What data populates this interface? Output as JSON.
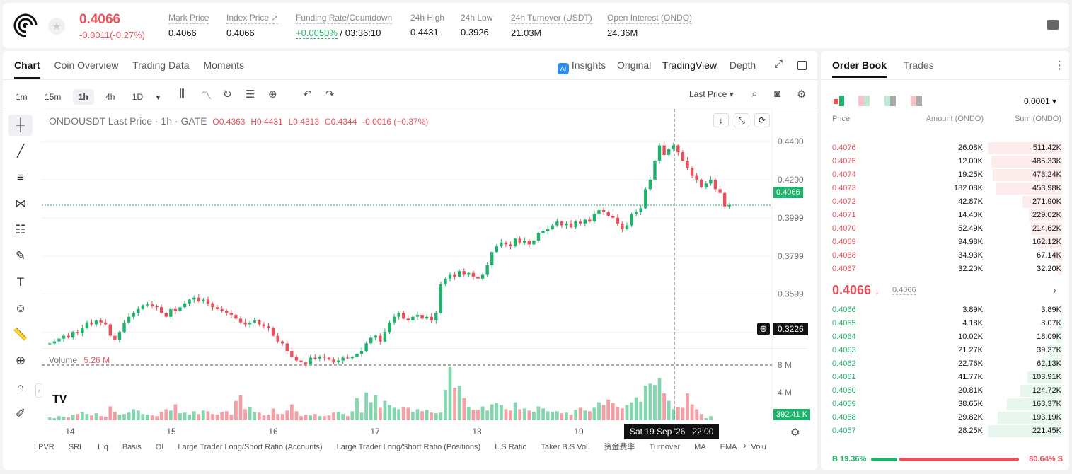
{
  "header": {
    "price": "0.4066",
    "change": "-0.0011(-0.27%)",
    "stats": [
      {
        "label": "Mark Price",
        "value": "0.4066"
      },
      {
        "label": "Index Price ↗",
        "value": "0.4066"
      },
      {
        "label": "Funding Rate/Countdown",
        "value_green": "+0.0050%",
        "value": "/ 03:36:10"
      },
      {
        "label": "24h High",
        "value": "0.4431"
      },
      {
        "label": "24h Low",
        "value": "0.3926"
      },
      {
        "label": "24h Turnover (USDT)",
        "value": "21.03M"
      },
      {
        "label": "Open Interest (ONDO)",
        "value": "24.36M"
      }
    ]
  },
  "chart_panel": {
    "tabs": [
      "Chart",
      "Coin Overview",
      "Trading Data",
      "Moments"
    ],
    "right_tabs": [
      "Insights",
      "Original",
      "TradingView",
      "Depth"
    ],
    "timeframes": [
      "1m",
      "15m",
      "1h",
      "4h",
      "1D"
    ],
    "price_type": "Last Price",
    "legend": {
      "symbol": "ONDOUSDT Last Price · 1h · GATE",
      "o": "O0.4363",
      "h": "H0.4431",
      "l": "L0.4313",
      "c": "C0.4344",
      "chg": "-0.0016 (−0.37%)"
    },
    "volume_label": "Volume",
    "volume_value": "5.26 M",
    "last_price_tag": "0.4066",
    "crosshair_tag": "0.3226",
    "volume_tag": "392.41 K",
    "crosshair_time": "Sat 19 Sep '26   22:00",
    "bottom_indicators": [
      "LPVR",
      "SRL",
      "Liq",
      "Basis",
      "OI",
      "Large Trader Long/Short Ratio (Accounts)",
      "Large Trader Long/Short Ratio (Positions)",
      "L.S Ratio",
      "Taker B.S Vol.",
      "资金费率",
      "Turnover",
      "MA",
      "EMA",
      "Volu"
    ]
  },
  "chart_data": {
    "type": "candlestick",
    "price_axis": [
      "0.4400",
      "0.4200",
      "0.3999",
      "0.3799",
      "0.3599",
      "0.3399"
    ],
    "volume_axis": [
      "8 M",
      "4 M"
    ],
    "x_ticks": [
      "14",
      "15",
      "16",
      "17",
      "18",
      "19"
    ],
    "ylim": [
      0.3226,
      0.446
    ],
    "close": [
      0.334,
      0.335,
      0.3365,
      0.338,
      0.337,
      0.34,
      0.3395,
      0.342,
      0.345,
      0.344,
      0.346,
      0.345,
      0.344,
      0.338,
      0.336,
      0.34,
      0.345,
      0.348,
      0.35,
      0.352,
      0.354,
      0.3545,
      0.3535,
      0.353,
      0.35,
      0.348,
      0.352,
      0.351,
      0.353,
      0.355,
      0.357,
      0.358,
      0.356,
      0.357,
      0.355,
      0.353,
      0.352,
      0.351,
      0.35,
      0.349,
      0.347,
      0.345,
      0.344,
      0.345,
      0.346,
      0.344,
      0.343,
      0.342,
      0.338,
      0.335,
      0.334,
      0.33,
      0.327,
      0.325,
      0.324,
      0.323,
      0.3265,
      0.326,
      0.327,
      0.3265,
      0.3255,
      0.324,
      0.325,
      0.3265,
      0.3262,
      0.327,
      0.3285,
      0.33,
      0.334,
      0.337,
      0.338,
      0.335,
      0.34,
      0.345,
      0.348,
      0.35,
      0.347,
      0.346,
      0.348,
      0.349,
      0.347,
      0.348,
      0.346,
      0.35,
      0.365,
      0.368,
      0.37,
      0.369,
      0.372,
      0.37,
      0.371,
      0.369,
      0.368,
      0.37,
      0.375,
      0.382,
      0.385,
      0.387,
      0.386,
      0.385,
      0.389,
      0.387,
      0.388,
      0.386,
      0.388,
      0.392,
      0.393,
      0.394,
      0.396,
      0.398,
      0.396,
      0.397,
      0.395,
      0.398,
      0.397,
      0.399,
      0.398,
      0.402,
      0.404,
      0.403,
      0.401,
      0.4,
      0.397,
      0.394,
      0.396,
      0.402,
      0.403,
      0.405,
      0.415,
      0.42,
      0.43,
      0.438,
      0.433,
      0.436,
      0.438,
      0.4344,
      0.43,
      0.426,
      0.422,
      0.42,
      0.416,
      0.418,
      0.42,
      0.415,
      0.413,
      0.406,
      0.4066
    ],
    "volume_m": [
      0.4,
      0.3,
      0.6,
      0.5,
      0.4,
      0.8,
      0.9,
      1.2,
      0.9,
      0.7,
      1.0,
      0.6,
      0.5,
      2.0,
      1.2,
      0.8,
      0.9,
      1.1,
      1.6,
      1.4,
      0.9,
      0.8,
      0.7,
      0.6,
      1.2,
      1.6,
      1.4,
      2.3,
      1.0,
      1.1,
      0.8,
      1.3,
      0.9,
      1.4,
      1.3,
      0.9,
      0.8,
      1.2,
      1.3,
      0.8,
      2.8,
      3.6,
      1.6,
      1.9,
      1.2,
      1.1,
      0.7,
      0.8,
      1.7,
      0.9,
      0.9,
      1.4,
      2.3,
      1.3,
      0.6,
      0.8,
      0.7,
      0.9,
      0.6,
      0.6,
      0.7,
      1.1,
      1.2,
      0.9,
      0.6,
      1.3,
      3.2,
      1.1,
      4.0,
      2.6,
      3.6,
      1.8,
      2.8,
      2.2,
      1.8,
      1.6,
      1.9,
      1.8,
      1.2,
      1.6,
      1.3,
      1.5,
      1.1,
      1.0,
      1.1,
      4.4,
      7.7,
      4.7,
      5.0,
      3.2,
      1.9,
      1.5,
      1.5,
      2.0,
      1.4,
      2.3,
      2.5,
      2.2,
      1.6,
      1.4,
      2.6,
      1.6,
      1.7,
      1.4,
      1.2,
      2.0,
      1.7,
      1.3,
      1.2,
      1.3,
      1.0,
      1.1,
      0.8,
      1.5,
      1.8,
      1.4,
      1.3,
      1.8,
      2.6,
      2.2,
      3.0,
      2.5,
      1.9,
      1.7,
      2.2,
      2.6,
      3.3,
      2.7,
      5.0,
      5.3,
      5.1,
      6.1,
      3.9,
      2.8,
      1.6,
      1.9,
      1.8,
      3.9,
      2.3,
      1.6,
      0.9,
      0.3,
      0.6
    ]
  },
  "order_book": {
    "tabs": [
      "Order Book",
      "Trades"
    ],
    "precision": "0.0001",
    "headers": [
      "Price",
      "Amount (ONDO)",
      "Sum (ONDO)"
    ],
    "asks": [
      {
        "p": "0.4076",
        "a": "26.08K",
        "s": "511.42K",
        "w": 1.0
      },
      {
        "p": "0.4075",
        "a": "12.09K",
        "s": "485.33K",
        "w": 0.95
      },
      {
        "p": "0.4074",
        "a": "19.25K",
        "s": "473.24K",
        "w": 0.93
      },
      {
        "p": "0.4073",
        "a": "182.08K",
        "s": "453.98K",
        "w": 0.89
      },
      {
        "p": "0.4072",
        "a": "42.87K",
        "s": "271.90K",
        "w": 0.53
      },
      {
        "p": "0.4071",
        "a": "14.40K",
        "s": "229.02K",
        "w": 0.45
      },
      {
        "p": "0.4070",
        "a": "52.49K",
        "s": "214.62K",
        "w": 0.42
      },
      {
        "p": "0.4069",
        "a": "94.98K",
        "s": "162.12K",
        "w": 0.32
      },
      {
        "p": "0.4068",
        "a": "34.93K",
        "s": "67.14K",
        "w": 0.13
      },
      {
        "p": "0.4067",
        "a": "32.20K",
        "s": "32.20K",
        "w": 0.06
      }
    ],
    "mid_price": "0.4066",
    "mid_arrow": "↓",
    "mid_mark": "0.4066",
    "bids": [
      {
        "p": "0.4066",
        "a": "3.89K",
        "s": "3.89K",
        "w": 0.02
      },
      {
        "p": "0.4065",
        "a": "4.18K",
        "s": "8.07K",
        "w": 0.04
      },
      {
        "p": "0.4064",
        "a": "10.02K",
        "s": "18.09K",
        "w": 0.08
      },
      {
        "p": "0.4063",
        "a": "21.27K",
        "s": "39.37K",
        "w": 0.18
      },
      {
        "p": "0.4062",
        "a": "22.76K",
        "s": "62.13K",
        "w": 0.28
      },
      {
        "p": "0.4061",
        "a": "41.77K",
        "s": "103.91K",
        "w": 0.47
      },
      {
        "p": "0.4060",
        "a": "20.81K",
        "s": "124.72K",
        "w": 0.56
      },
      {
        "p": "0.4059",
        "a": "38.65K",
        "s": "163.37K",
        "w": 0.74
      },
      {
        "p": "0.4058",
        "a": "29.82K",
        "s": "193.19K",
        "w": 0.87
      },
      {
        "p": "0.4057",
        "a": "28.25K",
        "s": "221.45K",
        "w": 1.0
      }
    ],
    "buy_label": "B 19.36%",
    "sell_label": "80.64% S",
    "buy_ratio": 0.1936
  },
  "colors": {
    "up": "#20b26c",
    "down": "#e8505b"
  }
}
